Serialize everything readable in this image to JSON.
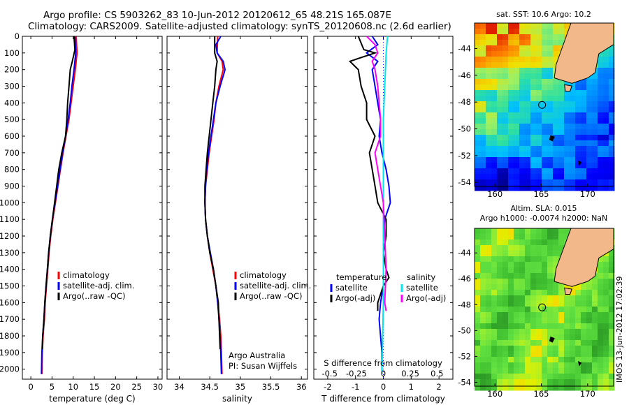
{
  "title": {
    "line1": "Argo profile: CS 5903262_83 10-Jun-2012 20120612_65 48.21S 165.087E",
    "line2": "Climatology: CARS2009. Satellite-adjusted climatology: synTS_20120608.nc (2.6d earlier)"
  },
  "colors": {
    "climatology": "#ff0000",
    "satellite": "#0000ff",
    "argo": "#000000",
    "satellite_s": "#00e5ee",
    "argo_s": "#ff00ff"
  },
  "depth_ticks": [
    "0",
    "100",
    "200",
    "300",
    "400",
    "500",
    "600",
    "700",
    "800",
    "900",
    "1000",
    "1100",
    "1200",
    "1300",
    "1400",
    "1500",
    "1600",
    "1700",
    "1800",
    "1900",
    "2000"
  ],
  "chart_data": [
    {
      "type": "line",
      "xlabel": "temperature (deg C)",
      "xlim": [
        -2,
        31
      ],
      "ylim": [
        2060,
        0
      ],
      "xticks": [
        "0",
        "5",
        "10",
        "15",
        "20",
        "25",
        "30"
      ],
      "xtick_values": [
        0,
        5,
        10,
        15,
        20,
        25,
        30
      ],
      "legend": [
        "climatology",
        "satellite-adj. clim.",
        "Argo(..raw -QC)"
      ],
      "series": [
        {
          "name": "climatology",
          "color": "#ff0000",
          "points": [
            [
              10.7,
              0
            ],
            [
              10.9,
              100
            ],
            [
              10.5,
              200
            ],
            [
              10.0,
              300
            ],
            [
              9.5,
              400
            ],
            [
              9.0,
              500
            ],
            [
              8.3,
              600
            ],
            [
              7.6,
              700
            ],
            [
              7.0,
              800
            ],
            [
              6.4,
              900
            ],
            [
              5.8,
              1000
            ],
            [
              5.2,
              1100
            ],
            [
              4.7,
              1200
            ],
            [
              4.3,
              1300
            ],
            [
              4.0,
              1400
            ],
            [
              3.7,
              1500
            ],
            [
              3.4,
              1600
            ],
            [
              3.2,
              1700
            ],
            [
              2.9,
              1800
            ],
            [
              2.7,
              1900
            ],
            [
              2.6,
              2030
            ]
          ]
        },
        {
          "name": "satellite-adj. clim.",
          "color": "#0000ff",
          "points": [
            [
              10.4,
              0
            ],
            [
              10.6,
              100
            ],
            [
              10.2,
              200
            ],
            [
              9.7,
              300
            ],
            [
              9.3,
              400
            ],
            [
              8.8,
              500
            ],
            [
              8.2,
              600
            ],
            [
              7.5,
              700
            ],
            [
              6.9,
              800
            ],
            [
              6.3,
              900
            ],
            [
              5.7,
              1000
            ],
            [
              5.1,
              1100
            ],
            [
              4.6,
              1200
            ],
            [
              4.2,
              1300
            ],
            [
              3.9,
              1400
            ],
            [
              3.6,
              1500
            ],
            [
              3.3,
              1600
            ],
            [
              3.1,
              1700
            ],
            [
              2.8,
              1800
            ],
            [
              2.6,
              1900
            ],
            [
              2.5,
              2030
            ]
          ]
        },
        {
          "name": "Argo(..raw -QC)",
          "color": "#000000",
          "points": [
            [
              10.2,
              0
            ],
            [
              10.4,
              80
            ],
            [
              9.8,
              150
            ],
            [
              9.3,
              200
            ],
            [
              9.0,
              300
            ],
            [
              8.7,
              400
            ],
            [
              8.5,
              500
            ],
            [
              8.2,
              600
            ],
            [
              7.3,
              700
            ],
            [
              6.6,
              800
            ],
            [
              6.1,
              900
            ],
            [
              5.6,
              1000
            ],
            [
              5.1,
              1100
            ],
            [
              4.6,
              1200
            ],
            [
              4.2,
              1300
            ],
            [
              3.9,
              1400
            ],
            [
              3.6,
              1500
            ],
            [
              3.3,
              1600
            ],
            [
              3.1,
              1700
            ],
            [
              2.8,
              1800
            ],
            [
              2.7,
              1880
            ]
          ]
        }
      ]
    },
    {
      "type": "line",
      "xlabel": "salinity",
      "xlim": [
        33.8,
        36.1
      ],
      "ylim": [
        2060,
        0
      ],
      "xticks": [
        "34",
        "34.5",
        "35",
        "35.5",
        "36"
      ],
      "xtick_values": [
        34,
        34.5,
        35,
        35.5,
        36
      ],
      "legend": [
        "climatology",
        "satellite-adj. clim.",
        "Argo(..raw -QC)"
      ],
      "annotation": [
        "Argo Australia",
        "PI: Susan Wijffels"
      ],
      "series": [
        {
          "name": "climatology",
          "color": "#ff0000",
          "points": [
            [
              34.63,
              0
            ],
            [
              34.62,
              100
            ],
            [
              34.7,
              150
            ],
            [
              34.72,
              200
            ],
            [
              34.65,
              300
            ],
            [
              34.6,
              400
            ],
            [
              34.57,
              500
            ],
            [
              34.53,
              600
            ],
            [
              34.49,
              700
            ],
            [
              34.46,
              800
            ],
            [
              34.43,
              900
            ],
            [
              34.42,
              1000
            ],
            [
              34.43,
              1100
            ],
            [
              34.46,
              1200
            ],
            [
              34.5,
              1300
            ],
            [
              34.55,
              1400
            ],
            [
              34.6,
              1500
            ],
            [
              34.63,
              1600
            ],
            [
              34.66,
              1700
            ],
            [
              34.68,
              1800
            ],
            [
              34.69,
              1900
            ],
            [
              34.7,
              2030
            ]
          ]
        },
        {
          "name": "satellite-adj. clim.",
          "color": "#0000ff",
          "points": [
            [
              34.68,
              0
            ],
            [
              34.6,
              50
            ],
            [
              34.62,
              100
            ],
            [
              34.72,
              150
            ],
            [
              34.75,
              200
            ],
            [
              34.67,
              300
            ],
            [
              34.6,
              400
            ],
            [
              34.56,
              500
            ],
            [
              34.52,
              600
            ],
            [
              34.48,
              700
            ],
            [
              34.45,
              800
            ],
            [
              34.43,
              900
            ],
            [
              34.42,
              1000
            ],
            [
              34.43,
              1100
            ],
            [
              34.46,
              1200
            ],
            [
              34.51,
              1300
            ],
            [
              34.56,
              1400
            ],
            [
              34.6,
              1500
            ],
            [
              34.63,
              1600
            ],
            [
              34.65,
              1700
            ],
            [
              34.67,
              1800
            ],
            [
              34.68,
              1900
            ],
            [
              34.69,
              2030
            ]
          ]
        },
        {
          "name": "Argo(..raw -QC)",
          "color": "#000000",
          "points": [
            [
              34.58,
              0
            ],
            [
              34.58,
              100
            ],
            [
              34.62,
              150
            ],
            [
              34.6,
              200
            ],
            [
              34.58,
              300
            ],
            [
              34.55,
              400
            ],
            [
              34.52,
              500
            ],
            [
              34.49,
              600
            ],
            [
              34.46,
              700
            ],
            [
              34.44,
              800
            ],
            [
              34.42,
              900
            ],
            [
              34.42,
              1000
            ],
            [
              34.43,
              1100
            ],
            [
              34.46,
              1200
            ],
            [
              34.5,
              1300
            ],
            [
              34.56,
              1400
            ],
            [
              34.6,
              1500
            ],
            [
              34.64,
              1600
            ],
            [
              34.65,
              1700
            ],
            [
              34.66,
              1800
            ],
            [
              34.67,
              1880
            ]
          ]
        }
      ]
    },
    {
      "type": "line",
      "xlabel": "T difference from climatology",
      "xlabel_top": "S difference from climatology",
      "xlim": [
        -2.5,
        2.5
      ],
      "ylim": [
        2060,
        0
      ],
      "xticks": [
        "-2",
        "-1",
        "0",
        "1",
        "2"
      ],
      "xtick_values": [
        -2,
        -1,
        0,
        1,
        2
      ],
      "top_ticks": [
        "-0.5",
        "-0.25",
        "0",
        "0.25",
        "0.5"
      ],
      "top_tick_values": [
        -1.93,
        -0.97,
        0,
        0.97,
        1.93
      ],
      "legend_t": {
        "title": "temperature",
        "items": [
          "satellite",
          "Argo(-adj)"
        ]
      },
      "legend_s": {
        "title": "salinity",
        "items": [
          "satellite",
          "Argo(-adj)"
        ]
      },
      "series": [
        {
          "name": "temperature satellite",
          "color": "#0000ff",
          "points": [
            [
              -0.4,
              0
            ],
            [
              -0.2,
              50
            ],
            [
              -0.6,
              100
            ],
            [
              -0.2,
              150
            ],
            [
              -0.4,
              200
            ],
            [
              -0.3,
              300
            ],
            [
              -0.2,
              400
            ],
            [
              -0.1,
              500
            ],
            [
              -0.15,
              600
            ],
            [
              -0.05,
              700
            ],
            [
              0.1,
              800
            ],
            [
              0.2,
              900
            ],
            [
              0.25,
              1000
            ],
            [
              0.05,
              1100
            ],
            [
              0.0,
              1200
            ],
            [
              0.0,
              1500
            ],
            [
              -0.1,
              1600
            ],
            [
              -0.15,
              1700
            ],
            [
              -0.1,
              1800
            ],
            [
              -0.05,
              1900
            ],
            [
              -0.05,
              2030
            ]
          ]
        },
        {
          "name": "temperature Argo(-adj)",
          "color": "#000000",
          "points": [
            [
              -0.9,
              0
            ],
            [
              -0.7,
              80
            ],
            [
              -0.3,
              100
            ],
            [
              -1.2,
              150
            ],
            [
              -0.9,
              200
            ],
            [
              -0.8,
              300
            ],
            [
              -0.6,
              400
            ],
            [
              -0.6,
              500
            ],
            [
              -0.3,
              600
            ],
            [
              -0.5,
              700
            ],
            [
              -0.4,
              800
            ],
            [
              -0.3,
              900
            ],
            [
              -0.2,
              1000
            ],
            [
              0.1,
              1100
            ],
            [
              0.1,
              1200
            ],
            [
              0.0,
              1300
            ],
            [
              0.1,
              1400
            ],
            [
              0.2,
              1450
            ],
            [
              0.0,
              1500
            ],
            [
              -0.2,
              1600
            ],
            [
              -0.2,
              1650
            ]
          ]
        },
        {
          "name": "salinity satellite",
          "color": "#00e5ee",
          "points": [
            [
              0.15,
              0
            ],
            [
              0.1,
              100
            ],
            [
              0.05,
              300
            ],
            [
              0.0,
              500
            ],
            [
              0.0,
              800
            ],
            [
              0.0,
              1200
            ],
            [
              0.0,
              1600
            ],
            [
              -0.05,
              2030
            ]
          ]
        },
        {
          "name": "salinity Argo(-adj)",
          "color": "#ff00ff",
          "points": [
            [
              -0.6,
              0
            ],
            [
              -0.3,
              50
            ],
            [
              -0.2,
              100
            ],
            [
              -0.4,
              150
            ],
            [
              -0.3,
              200
            ],
            [
              -0.2,
              300
            ],
            [
              -0.15,
              400
            ],
            [
              -0.1,
              500
            ],
            [
              -0.1,
              600
            ],
            [
              -0.3,
              700
            ],
            [
              -0.2,
              800
            ],
            [
              -0.1,
              900
            ],
            [
              0.0,
              1000
            ],
            [
              0.05,
              1200
            ],
            [
              0.1,
              1400
            ],
            [
              0.05,
              1600
            ],
            [
              0.1,
              1650
            ]
          ]
        }
      ]
    },
    {
      "type": "heatmap",
      "title": "sat. SST: 10.6  Argo: 10.2",
      "xlim": [
        157.8,
        172.8
      ],
      "ylim": [
        -54.3,
        -42.1
      ],
      "xticks": [
        "160",
        "165",
        "170"
      ],
      "xtick_values": [
        160,
        165,
        170
      ],
      "yticks": [
        "-44",
        "-46",
        "-48",
        "-50",
        "-52",
        "-54"
      ],
      "ytick_values": [
        -44,
        -46,
        -48,
        -50,
        -52,
        -54
      ],
      "argo_position": [
        165.087,
        -48.21
      ]
    },
    {
      "type": "heatmap",
      "title": "Altim. SLA: 0.015",
      "title2": "Argo h1000: -0.0074  h2000: NaN",
      "xlim": [
        157.8,
        172.8
      ],
      "ylim": [
        -54.3,
        -42.1
      ],
      "xticks": [
        "160",
        "165",
        "170"
      ],
      "xtick_values": [
        160,
        165,
        170
      ],
      "yticks": [
        "-44",
        "-46",
        "-48",
        "-50",
        "-52",
        "-54"
      ],
      "ytick_values": [
        -44,
        -46,
        -48,
        -50,
        -52,
        -54
      ],
      "argo_position": [
        165.087,
        -48.21
      ]
    }
  ],
  "footer_stamp": "IMOS 13-Jun-2012 17:02:39"
}
